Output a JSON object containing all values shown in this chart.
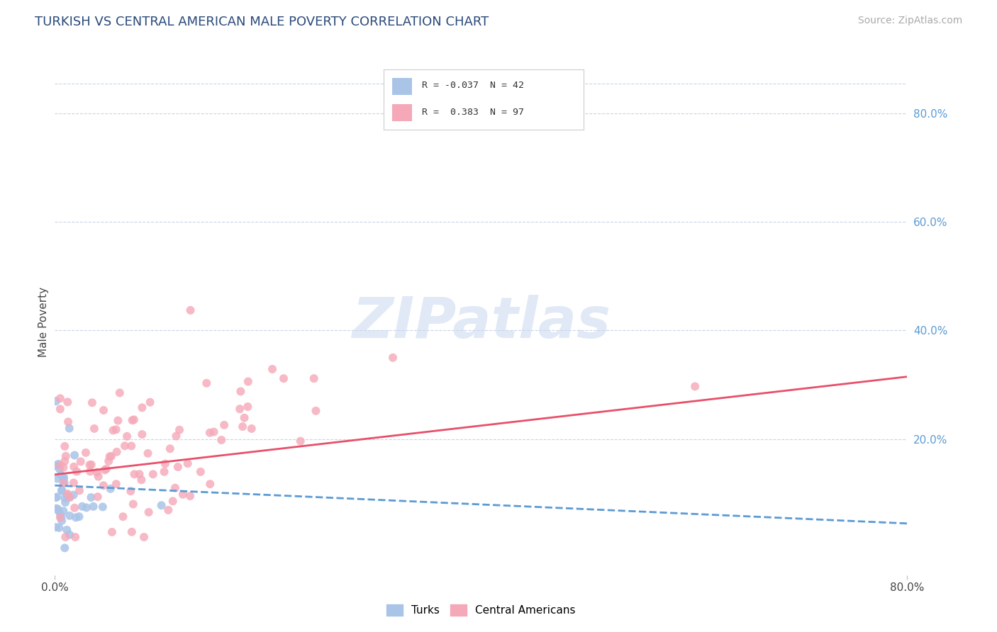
{
  "title": "TURKISH VS CENTRAL AMERICAN MALE POVERTY CORRELATION CHART",
  "source": "Source: ZipAtlas.com",
  "ylabel": "Male Poverty",
  "right_ytick_vals": [
    0.8,
    0.6,
    0.4,
    0.2
  ],
  "xlim": [
    0.0,
    0.8
  ],
  "ylim": [
    -0.05,
    0.88
  ],
  "turks_R": -0.037,
  "turks_N": 42,
  "central_R": 0.383,
  "central_N": 97,
  "turks_color": "#aac4e8",
  "central_color": "#f5a8b8",
  "turks_line_color": "#5b9bd5",
  "central_line_color": "#e8506a",
  "background_color": "#ffffff",
  "grid_color": "#c8d4e8",
  "watermark": "ZIPatlas",
  "watermark_color": "#c8d8ee",
  "turks_line_y0": 0.115,
  "turks_line_y1": 0.045,
  "central_line_y0": 0.135,
  "central_line_y1": 0.315
}
